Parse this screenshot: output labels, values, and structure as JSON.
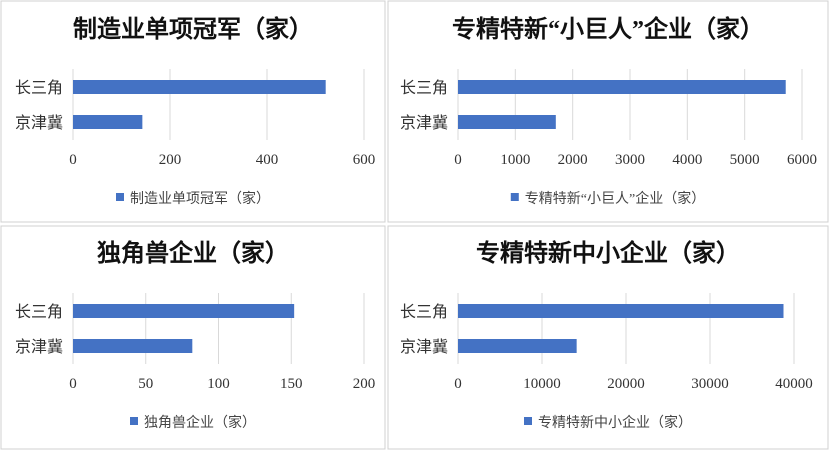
{
  "bar_color": "#4472C4",
  "chart_data": [
    {
      "type": "bar",
      "orientation": "horizontal",
      "title": "制造业单项冠军（家）",
      "categories": [
        "长三角",
        "京津冀"
      ],
      "series": [
        {
          "name": "制造业单项冠军（家）",
          "values": [
            521,
            143
          ]
        }
      ],
      "xlim": [
        0,
        600
      ],
      "ticks": [
        "0",
        "200",
        "400",
        "600"
      ],
      "grid": true,
      "legend": "bottom"
    },
    {
      "type": "bar",
      "orientation": "horizontal",
      "title": "专精特新“小巨人”企业（家）",
      "categories": [
        "长三角",
        "京津冀"
      ],
      "series": [
        {
          "name": "专精特新“小巨人”企业（家）",
          "values": [
            5716,
            1706
          ]
        }
      ],
      "xlim": [
        0,
        6000
      ],
      "ticks": [
        "0",
        "1000",
        "2000",
        "3000",
        "4000",
        "5000",
        "6000"
      ],
      "grid": true,
      "legend": "bottom"
    },
    {
      "type": "bar",
      "orientation": "horizontal",
      "title": "独角兽企业（家）",
      "categories": [
        "长三角",
        "京津冀"
      ],
      "series": [
        {
          "name": "独角兽企业（家）",
          "values": [
            152,
            82
          ]
        }
      ],
      "xlim": [
        0,
        200
      ],
      "ticks": [
        "0",
        "50",
        "100",
        "150",
        "200"
      ],
      "grid": true,
      "legend": "bottom"
    },
    {
      "type": "bar",
      "orientation": "horizontal",
      "title": "专精特新中小企业（家）",
      "categories": [
        "长三角",
        "京津冀"
      ],
      "series": [
        {
          "name": "专精特新中小企业（家）",
          "values": [
            38750,
            14125
          ]
        }
      ],
      "xlim": [
        0,
        40000
      ],
      "ticks": [
        "0",
        "10000",
        "20000",
        "30000",
        "40000"
      ],
      "grid": true,
      "legend": "bottom"
    }
  ]
}
